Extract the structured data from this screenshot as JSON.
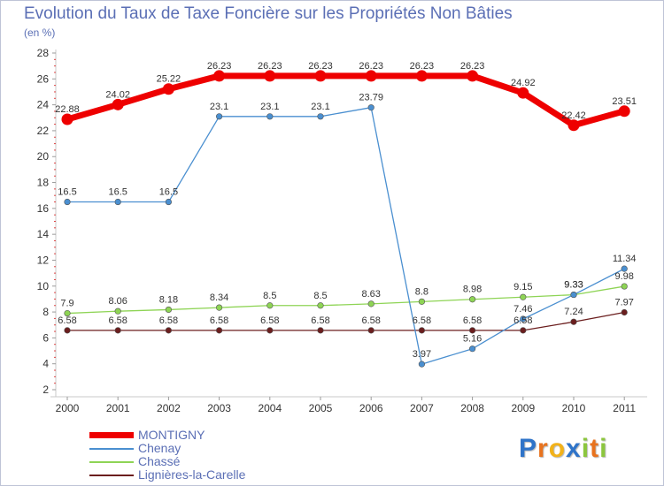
{
  "chart_data": {
    "type": "line",
    "title": "Evolution du Taux de Taxe Foncière sur les Propriétés Non Bâties",
    "unit_label": "(en %)",
    "x": [
      "2000",
      "2001",
      "2002",
      "2003",
      "2004",
      "2005",
      "2006",
      "2007",
      "2008",
      "2009",
      "2010",
      "2011"
    ],
    "ylim": [
      2,
      28
    ],
    "yticks": [
      2,
      4,
      6,
      8,
      10,
      12,
      14,
      16,
      18,
      20,
      22,
      24,
      26,
      28
    ],
    "grid": false,
    "legend_position": "bottom-left",
    "series": [
      {
        "name": "MONTIGNY",
        "color": "#ee0000",
        "values": [
          22.88,
          24.02,
          25.22,
          26.23,
          26.23,
          26.23,
          26.23,
          26.23,
          26.23,
          24.92,
          22.42,
          23.51
        ],
        "labels": [
          "22.88",
          "24.02",
          "25.22",
          "26.23",
          "26.23",
          "26.23",
          "26.23",
          "26.23",
          "26.23",
          "24.92",
          "22.42",
          "23.51"
        ]
      },
      {
        "name": "Chenay",
        "color": "#4a8fd0",
        "values": [
          16.5,
          16.5,
          16.5,
          23.1,
          23.1,
          23.1,
          23.79,
          3.97,
          5.16,
          7.46,
          9.33,
          11.34
        ],
        "labels": [
          "16.5",
          "16.5",
          "16.5",
          "23.1",
          "23.1",
          "23.1",
          "23.79",
          "3.97",
          "5.16",
          "7.46",
          "9.33",
          "11.34"
        ]
      },
      {
        "name": "Chassé",
        "color": "#8ed455",
        "values": [
          7.9,
          8.06,
          8.18,
          8.34,
          8.5,
          8.5,
          8.63,
          8.8,
          8.98,
          9.15,
          9.33,
          9.98
        ],
        "labels": [
          "7.9",
          "8.06",
          "8.18",
          "8.34",
          "8.5",
          "8.5",
          "8.63",
          "8.8",
          "8.98",
          "9.15",
          "9.33",
          "9.98"
        ]
      },
      {
        "name": "Lignières-la-Carelle",
        "color": "#6b1e1e",
        "values": [
          6.58,
          6.58,
          6.58,
          6.58,
          6.58,
          6.58,
          6.58,
          6.58,
          6.58,
          6.58,
          7.24,
          7.97
        ],
        "labels": [
          "6.58",
          "6.58",
          "6.58",
          "6.58",
          "6.58",
          "6.58",
          "6.58",
          "6.58",
          "6.58",
          "6.58",
          "7.24",
          "7.97"
        ]
      }
    ]
  },
  "brand": {
    "letters": [
      "P",
      "r",
      "o",
      "x",
      "i",
      "t",
      "i"
    ],
    "colors": [
      "#2f74c9",
      "#e8731e",
      "#f2b21a",
      "#2f74c9",
      "#8cc63e",
      "#e8731e",
      "#8cc63e"
    ]
  }
}
